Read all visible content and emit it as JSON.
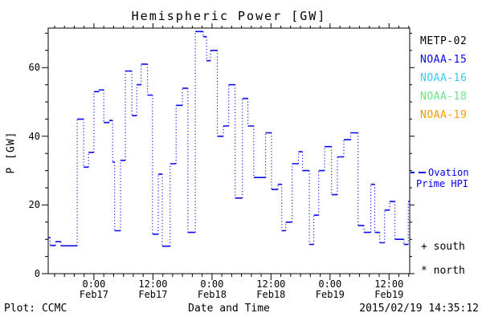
{
  "colors": {
    "curve_blue": "#0A0AEE",
    "axis_black": "#000000",
    "background": "#FFFFFF"
  },
  "legend": {
    "satellites": [
      {
        "label": "METP-02",
        "color": "#000000"
      },
      {
        "label": "NOAA-15",
        "color": "#0A0AEE"
      },
      {
        "label": "NOAA-16",
        "color": "#33CCFF"
      },
      {
        "label": "NOAA-18",
        "color": "#63E685"
      },
      {
        "label": "NOAA-19",
        "color": "#FF9900"
      }
    ],
    "ovation": {
      "line1": "Ovation",
      "line2": "Prime HPI",
      "color": "#0A0AEE"
    },
    "markers": [
      {
        "symbol": "+",
        "label": "south"
      },
      {
        "symbol": "*",
        "label": "north"
      }
    ]
  },
  "footer": {
    "left": "Plot: CCMC",
    "right": "2015/02/19 14:35:12"
  },
  "chart_data": {
    "type": "line",
    "subtype": "step-post",
    "title": "Hemispheric Power [GW]",
    "xlabel": "Date and Time",
    "ylabel": "P [GW]",
    "grid": false,
    "legend_position": "right-outside",
    "xlim_hours": [
      -9.3,
      64.2
    ],
    "x_hours_reference": "Feb17 0:00",
    "x_minor_step_hours": 2,
    "x_ticks": [
      {
        "hour": 0,
        "time": "0:00",
        "date": "Feb17"
      },
      {
        "hour": 12,
        "time": "12:00",
        "date": "Feb17"
      },
      {
        "hour": 24,
        "time": "0:00",
        "date": "Feb18"
      },
      {
        "hour": 36,
        "time": "12:00",
        "date": "Feb18"
      },
      {
        "hour": 48,
        "time": "0:00",
        "date": "Feb19"
      },
      {
        "hour": 60,
        "time": "12:00",
        "date": "Feb19"
      }
    ],
    "ylim": [
      0,
      71.5
    ],
    "y_ticks": [
      0,
      20,
      40,
      60
    ],
    "y_minor_step": 5,
    "series": [
      {
        "name": "Ovation Prime HPI",
        "color": "#0A0AEE",
        "style": "solid horizontal steps, dotted vertical connectors",
        "t_hours": [
          -9.3,
          -8.9,
          -7.8,
          -6.7,
          -3.4,
          -2.1,
          -1.1,
          0.0,
          1.0,
          2.0,
          3.1,
          3.8,
          4.2,
          5.4,
          6.4,
          7.7,
          8.7,
          9.6,
          10.9,
          11.9,
          13.1,
          13.9,
          15.5,
          16.7,
          18.0,
          19.1,
          20.6,
          22.2,
          22.9,
          23.7,
          25.1,
          26.3,
          27.4,
          28.7,
          30.2,
          31.3,
          32.5,
          34.9,
          36.1,
          37.4,
          38.2,
          39.0,
          40.3,
          41.6,
          42.4,
          43.8,
          44.7,
          45.7,
          46.9,
          48.3,
          49.5,
          50.8,
          52.2,
          53.7,
          54.9,
          56.3,
          57.1,
          58.1,
          59.1,
          60.1,
          61.2,
          63.0,
          63.9,
          64.2
        ],
        "p_gw": [
          10.5,
          8.2,
          9.3,
          8.1,
          45,
          31,
          35.3,
          53,
          53.5,
          44,
          44.6,
          32.5,
          12.5,
          33,
          59,
          46,
          55,
          61,
          52,
          11.5,
          29,
          8,
          32,
          49,
          54,
          12,
          70.5,
          69,
          62,
          65,
          40,
          43,
          55,
          22,
          51,
          43,
          28,
          41,
          24.5,
          26,
          12.5,
          15,
          32,
          35.5,
          30,
          8.5,
          17,
          30,
          37,
          23,
          34,
          39,
          41,
          14,
          12,
          26,
          12,
          9,
          18.5,
          21,
          10,
          8.5,
          21
        ]
      }
    ]
  }
}
